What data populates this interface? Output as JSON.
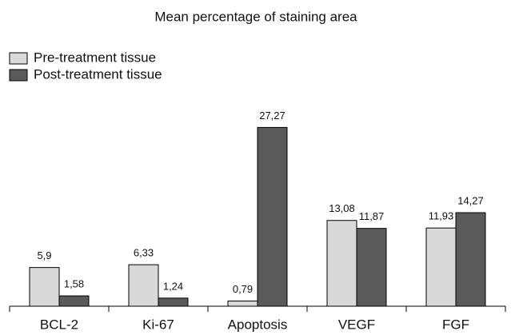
{
  "chart_data": {
    "type": "bar",
    "title": "Mean percentage of staining area",
    "categories": [
      "BCL-2",
      "Ki-67",
      "Apoptosis",
      "VEGF",
      "FGF"
    ],
    "series": [
      {
        "name": "Pre-treatment tissue",
        "color": "#d9d9d9",
        "values": [
          5.9,
          6.33,
          0.79,
          13.08,
          11.93
        ],
        "value_labels": [
          "5,9",
          "6,33",
          "0,79",
          "13,08",
          "11,93"
        ]
      },
      {
        "name": "Post-treatment tissue",
        "color": "#5a5a5a",
        "values": [
          1.58,
          1.24,
          27.27,
          11.87,
          14.27
        ],
        "value_labels": [
          "1,58",
          "1,24",
          "27,27",
          "11,87",
          "14,27"
        ]
      }
    ],
    "ylim": [
      0,
      30
    ],
    "legend": "top-left"
  }
}
